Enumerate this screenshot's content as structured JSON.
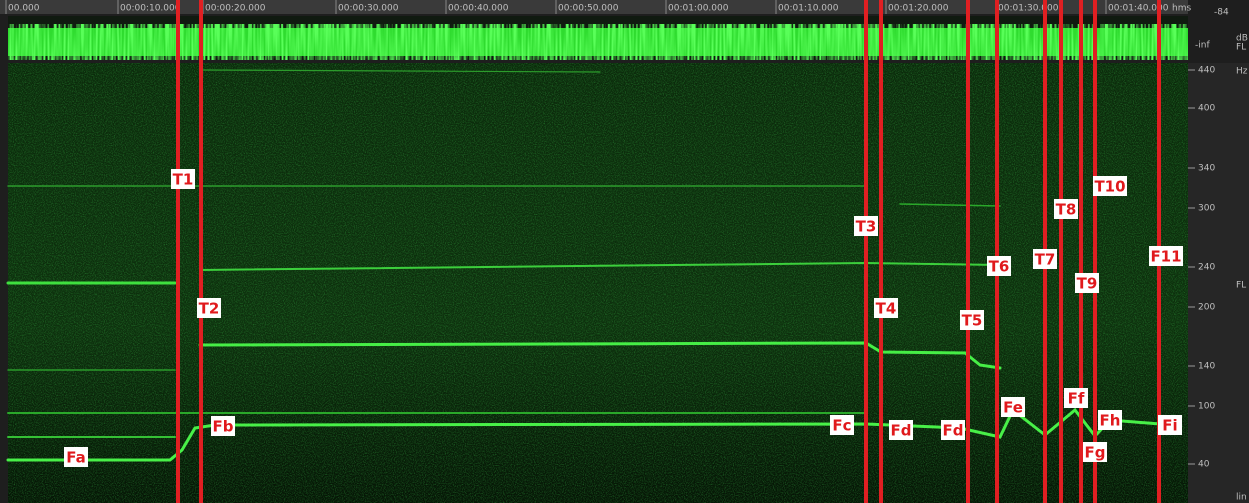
{
  "timeline": {
    "labels": [
      "00.000",
      "00:00:10.000",
      "00:00:20.000",
      "00:00:30.000",
      "00:00:40.000",
      "00:00:50.000",
      "00:01:00.000",
      "00:01:10.000",
      "00:01:20.000",
      "00:01:30.000",
      "00:01:40.000"
    ],
    "unit": "hms"
  },
  "waveform_scale": {
    "top": "-84",
    "unit": "dB",
    "bottom": "-inf",
    "channel": "FL"
  },
  "frequency_scale": {
    "unit": "Hz",
    "labels": [
      "440",
      "400",
      "340",
      "300",
      "240",
      "200",
      "140",
      "100",
      "40"
    ],
    "bottom": "lin"
  },
  "channel_label": "FL",
  "markers": [
    {
      "label": "T1"
    },
    {
      "label": "T2"
    },
    {
      "label": "T3"
    },
    {
      "label": "T4"
    },
    {
      "label": "T5"
    },
    {
      "label": "T6"
    },
    {
      "label": "T7"
    },
    {
      "label": "T8"
    },
    {
      "label": "T9"
    },
    {
      "label": "T10"
    },
    {
      "label": "F11"
    }
  ],
  "annotations": [
    {
      "label": "Fa"
    },
    {
      "label": "Fb"
    },
    {
      "label": "Fc"
    },
    {
      "label": "Fd"
    },
    {
      "label": "Fd"
    },
    {
      "label": "Fe"
    },
    {
      "label": "Ff"
    },
    {
      "label": "Fg"
    },
    {
      "label": "Fh"
    },
    {
      "label": "Fi"
    }
  ]
}
